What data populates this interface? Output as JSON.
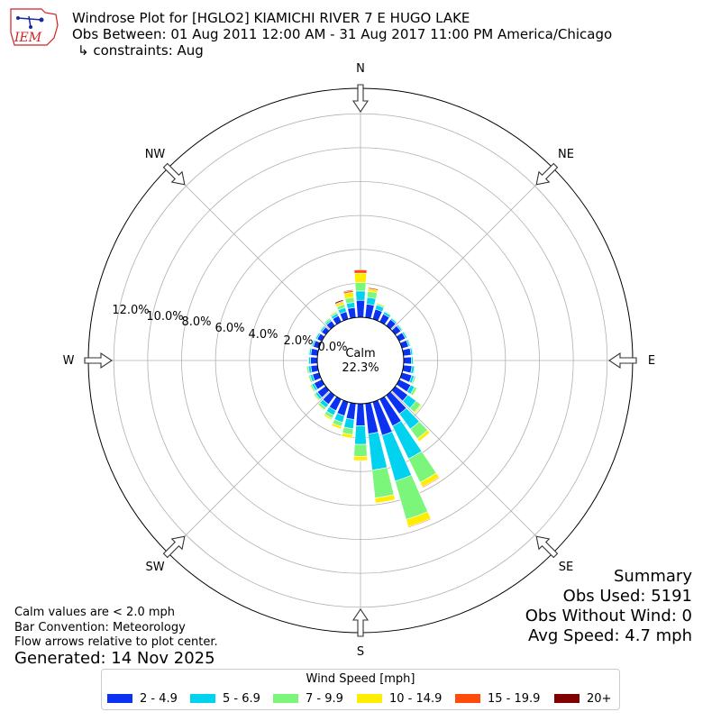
{
  "header": {
    "title": "Windrose Plot for [HGLO2] KIAMICHI RIVER 7 E HUGO LAKE",
    "obs_between": "Obs Between: 01 Aug 2011 12:00 AM - 31 Aug 2017 11:00 PM America/Chicago",
    "constraints": "↳ constraints: Aug",
    "logo_text": "IEM"
  },
  "notes": {
    "calm_def": "Calm values are < 2.0 mph",
    "bar_convention": "Bar Convention: Meteorology",
    "flow_arrows": "Flow arrows relative to plot center.",
    "generated": "Generated: 14 Nov 2025"
  },
  "summary": {
    "title": "Summary",
    "obs_used": "Obs Used: 5191",
    "obs_without_wind": "Obs Without Wind: 0",
    "avg_speed": "Avg Speed: 4.7 mph"
  },
  "legend": {
    "title": "Wind Speed [mph]",
    "items": [
      {
        "label": "2 - 4.9",
        "color": "#0a32f0"
      },
      {
        "label": "5 - 6.9",
        "color": "#00d2f0"
      },
      {
        "label": "7 - 9.9",
        "color": "#7cf67a"
      },
      {
        "label": "10 - 14.9",
        "color": "#ffee00"
      },
      {
        "label": "15 - 19.9",
        "color": "#ff4c0a"
      },
      {
        "label": "20+",
        "color": "#800000"
      }
    ]
  },
  "chart_data": {
    "type": "windrose",
    "title": "Windrose Plot for [HGLO2] KIAMICHI RIVER 7 E HUGO LAKE",
    "direction_labels": [
      "N",
      "NE",
      "E",
      "SE",
      "S",
      "SW",
      "W",
      "NW"
    ],
    "radial_tick_labels": [
      "0.0%",
      "2.0%",
      "4.0%",
      "6.0%",
      "8.0%",
      "10.0%",
      "12.0%"
    ],
    "radial_max_percent": 13.5,
    "calm_label": "Calm",
    "calm_percent": "22.3%",
    "speed_bins": [
      "2 - 4.9",
      "5 - 6.9",
      "7 - 9.9",
      "10 - 14.9",
      "15 - 19.9",
      "20+"
    ],
    "directions_deg": [
      0,
      10,
      20,
      30,
      40,
      50,
      60,
      70,
      80,
      90,
      100,
      110,
      120,
      130,
      140,
      150,
      160,
      170,
      180,
      190,
      200,
      210,
      220,
      230,
      240,
      250,
      260,
      270,
      280,
      290,
      300,
      310,
      320,
      330,
      340,
      350
    ],
    "series": [
      {
        "name": "2 - 4.9",
        "values": [
          1.0,
          0.8,
          0.6,
          0.5,
          0.45,
          0.4,
          0.4,
          0.4,
          0.45,
          0.45,
          0.5,
          0.6,
          0.75,
          0.9,
          1.35,
          1.75,
          2.05,
          1.8,
          1.3,
          0.95,
          0.85,
          0.75,
          0.65,
          0.6,
          0.5,
          0.4,
          0.4,
          0.4,
          0.4,
          0.35,
          0.3,
          0.3,
          0.35,
          0.4,
          0.45,
          0.6
        ]
      },
      {
        "name": "5 - 6.9",
        "values": [
          0.55,
          0.4,
          0.25,
          0.15,
          0.1,
          0.1,
          0.1,
          0.1,
          0.1,
          0.1,
          0.15,
          0.15,
          0.25,
          0.6,
          1.1,
          2.15,
          2.8,
          2.15,
          1.1,
          0.55,
          0.4,
          0.3,
          0.25,
          0.15,
          0.15,
          0.15,
          0.15,
          0.1,
          0.1,
          0.1,
          0.1,
          0.1,
          0.1,
          0.15,
          0.25,
          0.3
        ]
      },
      {
        "name": "7 - 9.9",
        "values": [
          0.5,
          0.35,
          0.1,
          0.05,
          0.05,
          0.05,
          0.05,
          0.05,
          0.05,
          0.05,
          0.05,
          0.1,
          0.15,
          0.35,
          0.7,
          1.55,
          2.35,
          1.65,
          0.7,
          0.35,
          0.25,
          0.2,
          0.15,
          0.1,
          0.1,
          0.1,
          0.1,
          0.05,
          0.05,
          0.05,
          0.05,
          0.05,
          0.1,
          0.1,
          0.2,
          0.3
        ]
      },
      {
        "name": "10 - 14.9",
        "values": [
          0.55,
          0.15,
          0.05,
          0.0,
          0.0,
          0.0,
          0.0,
          0.0,
          0.0,
          0.0,
          0.0,
          0.02,
          0.05,
          0.08,
          0.2,
          0.3,
          0.45,
          0.3,
          0.25,
          0.2,
          0.15,
          0.1,
          0.05,
          0.05,
          0.05,
          0.0,
          0.0,
          0.0,
          0.0,
          0.0,
          0.0,
          0.0,
          0.0,
          0.05,
          0.15,
          0.3
        ]
      },
      {
        "name": "15 - 19.9",
        "values": [
          0.2,
          0.08,
          0.0,
          0.0,
          0.0,
          0.0,
          0.0,
          0.0,
          0.0,
          0.0,
          0.0,
          0.0,
          0.0,
          0.0,
          0.02,
          0.05,
          0.05,
          0.0,
          0.0,
          0.0,
          0.0,
          0.0,
          0.0,
          0.0,
          0.0,
          0.0,
          0.0,
          0.0,
          0.0,
          0.0,
          0.0,
          0.0,
          0.0,
          0.0,
          0.05,
          0.1
        ]
      },
      {
        "name": "20+",
        "values": [
          0.0,
          0.0,
          0.0,
          0.0,
          0.0,
          0.0,
          0.0,
          0.0,
          0.0,
          0.0,
          0.0,
          0.0,
          0.0,
          0.0,
          0.0,
          0.0,
          0.0,
          0.0,
          0.0,
          0.0,
          0.0,
          0.0,
          0.0,
          0.0,
          0.0,
          0.0,
          0.0,
          0.0,
          0.0,
          0.0,
          0.0,
          0.0,
          0.0,
          0.0,
          0.08,
          0.05
        ]
      }
    ],
    "grid": true
  }
}
